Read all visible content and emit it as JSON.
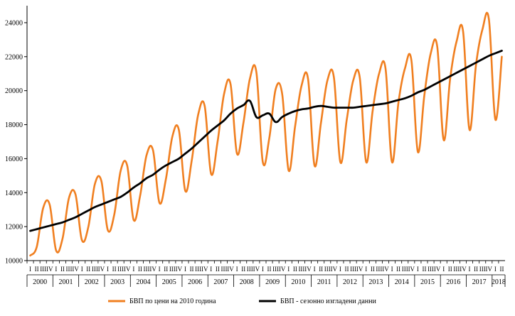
{
  "chart_data": {
    "type": "line",
    "title": "",
    "xlabel": "",
    "ylabel": "",
    "ylim": [
      10000,
      25000
    ],
    "yticks": [
      "10000",
      "12000",
      "14000",
      "16000",
      "18000",
      "20000",
      "22000",
      "24000"
    ],
    "quarter_labels": [
      "I",
      "II",
      "III",
      "IV"
    ],
    "years": [
      "2000",
      "2001",
      "2002",
      "2003",
      "2004",
      "2005",
      "2006",
      "2007",
      "2008",
      "2009",
      "2010",
      "2011",
      "2012",
      "2013",
      "2014",
      "2015",
      "2016",
      "2017",
      "2018"
    ],
    "grid": false,
    "legend_position": "bottom",
    "series": [
      {
        "name": "БВП по цени на 2010 година",
        "color": "#F07F20",
        "values": [
          10300,
          10800,
          13100,
          13300,
          10600,
          11300,
          13700,
          13900,
          11200,
          12000,
          14500,
          14700,
          11800,
          12700,
          15300,
          15600,
          12400,
          13800,
          16200,
          16500,
          13400,
          14800,
          17300,
          17700,
          14100,
          15900,
          18600,
          19100,
          15100,
          17000,
          19800,
          20400,
          16300,
          18100,
          20700,
          21100,
          15800,
          17200,
          20100,
          19800,
          15300,
          17900,
          20300,
          20700,
          15600,
          18100,
          20600,
          20800,
          15800,
          18300,
          20600,
          20800,
          15800,
          18800,
          21000,
          21300,
          15800,
          19300,
          21300,
          21800,
          16400,
          19700,
          22200,
          22600,
          17100,
          20700,
          22900,
          23500,
          17700,
          21500,
          23600,
          24200,
          18300,
          22000
        ]
      },
      {
        "name": "БВП - сезонно изгладени данни",
        "color": "#000000",
        "values": [
          11750,
          11850,
          11950,
          12050,
          12150,
          12250,
          12400,
          12550,
          12750,
          12950,
          13150,
          13300,
          13450,
          13600,
          13750,
          14000,
          14300,
          14550,
          14850,
          15050,
          15350,
          15600,
          15800,
          16000,
          16300,
          16600,
          16950,
          17300,
          17650,
          17950,
          18250,
          18650,
          18950,
          19150,
          19400,
          18450,
          18550,
          18650,
          18150,
          18450,
          18650,
          18800,
          18900,
          18950,
          19050,
          19100,
          19050,
          19000,
          19000,
          19000,
          19000,
          19050,
          19100,
          19150,
          19200,
          19250,
          19350,
          19450,
          19550,
          19700,
          19900,
          20050,
          20250,
          20450,
          20650,
          20850,
          21050,
          21250,
          21450,
          21650,
          21850,
          22050,
          22200,
          22350
        ]
      }
    ]
  }
}
